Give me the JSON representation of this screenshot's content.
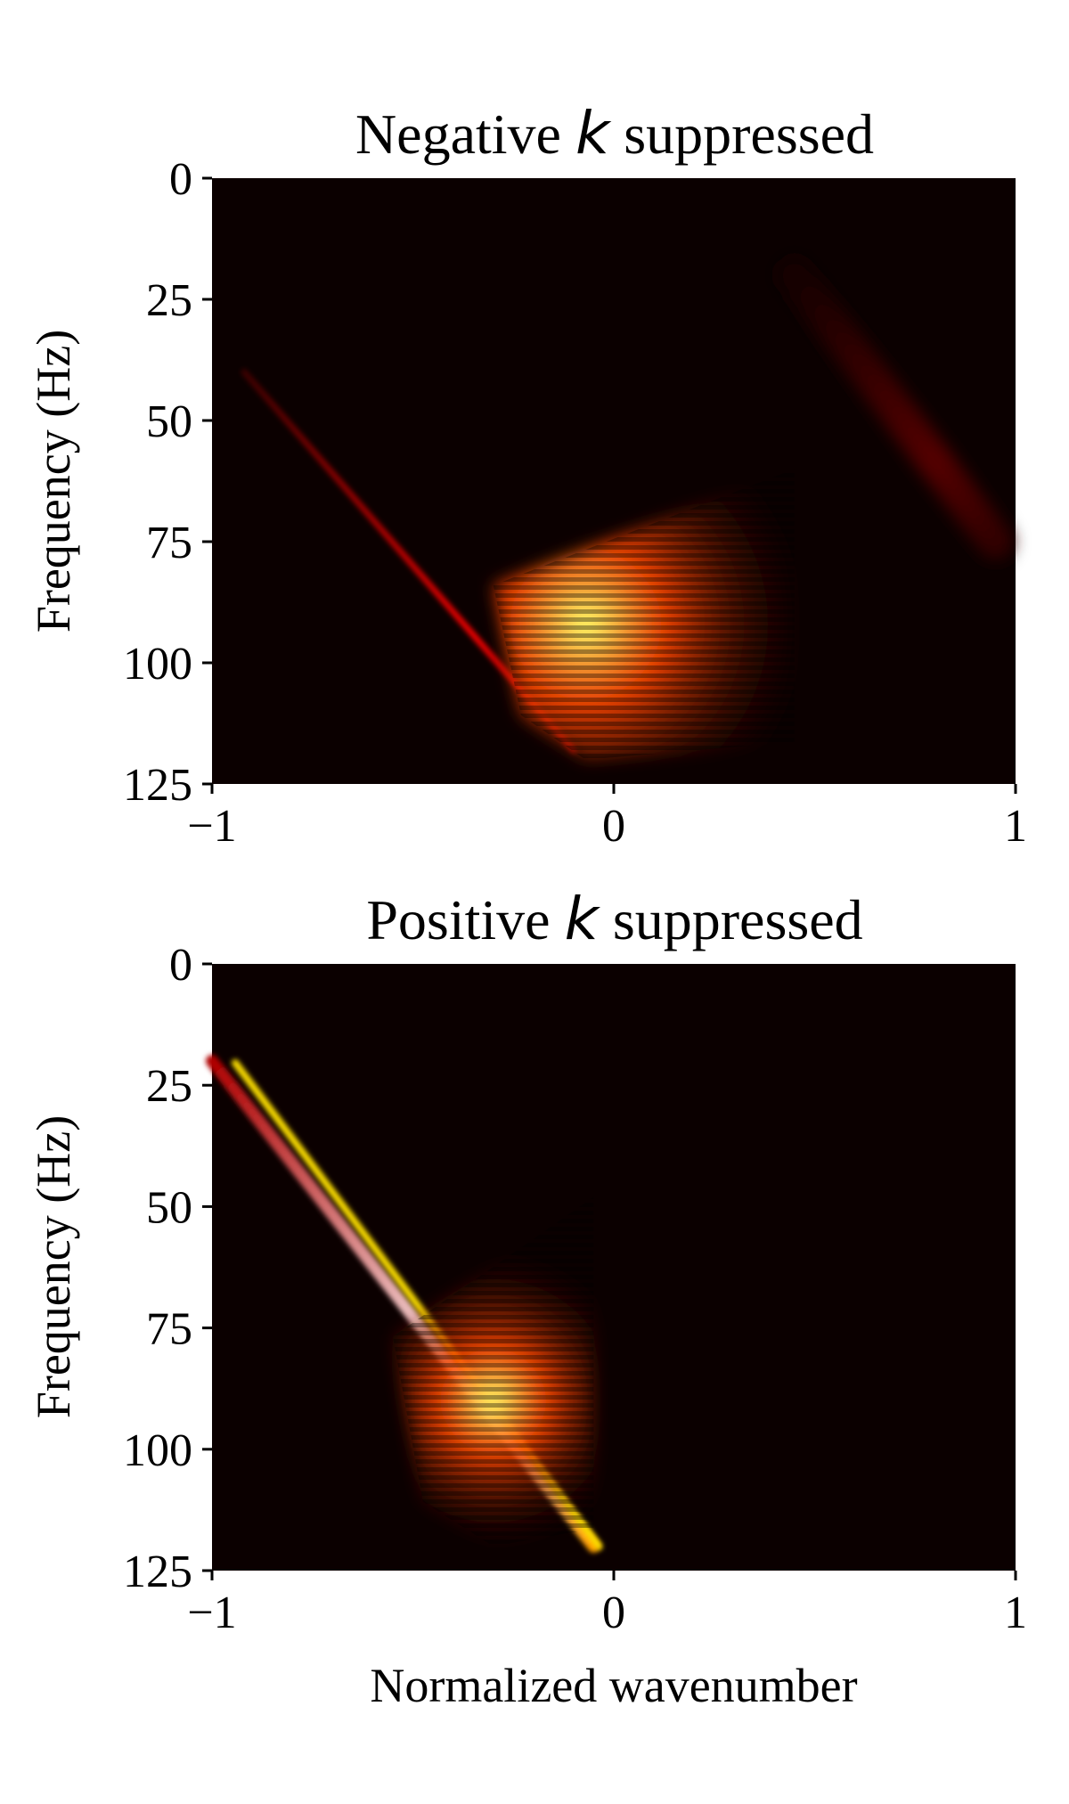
{
  "chart_data": [
    {
      "type": "heatmap",
      "title_prefix": "Negative ",
      "title_symbol": "k",
      "title_suffix": " suppressed",
      "xlabel": "",
      "ylabel": "Frequency (Hz)",
      "xlim": [
        -1,
        1
      ],
      "ylim": [
        0,
        125
      ],
      "y_inverted": true,
      "colormap": "hot",
      "x_ticks": [
        -1,
        0,
        1
      ],
      "x_tick_labels": [
        "−1",
        "0",
        "1"
      ],
      "y_ticks": [
        0,
        25,
        50,
        75,
        100,
        125
      ],
      "y_tick_labels": [
        "0",
        "25",
        "50",
        "75",
        "100",
        "125"
      ],
      "features": [
        {
          "kind": "dispersion-line",
          "k": [
            -0.92,
            -0.1
          ],
          "freq": [
            40,
            118
          ],
          "peak": 0.35
        },
        {
          "kind": "fan",
          "k": [
            -0.3,
            0.45
          ],
          "freq": [
            60,
            120
          ],
          "peak_k": -0.07,
          "peak_freq": 92,
          "peak": 0.85
        },
        {
          "kind": "faint-diagonal",
          "k": [
            0.45,
            0.95
          ],
          "freq": [
            20,
            75
          ],
          "peak": 0.12
        }
      ]
    },
    {
      "type": "heatmap",
      "title_prefix": "Positive ",
      "title_symbol": "k",
      "title_suffix": " suppressed",
      "xlabel": "Normalized wavenumber",
      "ylabel": "Frequency (Hz)",
      "xlim": [
        -1,
        1
      ],
      "ylim": [
        0,
        125
      ],
      "y_inverted": true,
      "colormap": "hot",
      "x_ticks": [
        -1,
        0,
        1
      ],
      "x_tick_labels": [
        "−1",
        "0",
        "1"
      ],
      "y_ticks": [
        0,
        25,
        50,
        75,
        100,
        125
      ],
      "y_tick_labels": [
        "0",
        "25",
        "50",
        "75",
        "100",
        "125"
      ],
      "features": [
        {
          "kind": "dispersion-line",
          "k": [
            -1.0,
            -0.05
          ],
          "freq": [
            20,
            120
          ],
          "peak": 1.0
        },
        {
          "kind": "fan",
          "k": [
            -0.55,
            -0.05
          ],
          "freq": [
            48,
            120
          ],
          "peak_k": -0.3,
          "peak_freq": 90,
          "peak": 0.85
        }
      ]
    }
  ]
}
